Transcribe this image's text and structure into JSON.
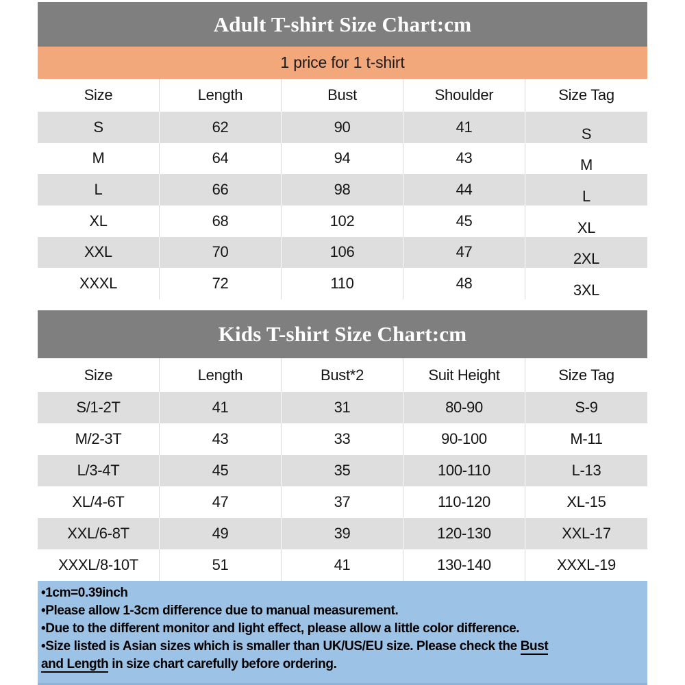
{
  "colors": {
    "title_bar_bg": "#7F7F7F",
    "price_bar_bg": "#F3A87B",
    "row_stripe_bg": "#DEDEDE",
    "notes_bg": "#9CC3E6",
    "title_text": "#FFFFFF"
  },
  "adult": {
    "title": "Adult T-shirt Size Chart:cm",
    "price_note": "1 price for 1 t-shirt",
    "headers": [
      "Size",
      "Length",
      "Bust",
      "Shoulder",
      "Size Tag"
    ],
    "rows": [
      [
        "S",
        "62",
        "90",
        "41",
        "S"
      ],
      [
        "M",
        "64",
        "94",
        "43",
        "M"
      ],
      [
        "L",
        "66",
        "98",
        "44",
        "L"
      ],
      [
        "XL",
        "68",
        "102",
        "45",
        "XL"
      ],
      [
        "XXL",
        "70",
        "106",
        "47",
        "2XL"
      ],
      [
        "XXXL",
        "72",
        "110",
        "48",
        "3XL"
      ]
    ]
  },
  "kids": {
    "title": "Kids T-shirt Size Chart:cm",
    "headers": [
      "Size",
      "Length",
      "Bust*2",
      "Suit Height",
      "Size Tag"
    ],
    "rows": [
      [
        "S/1-2T",
        "41",
        "31",
        "80-90",
        "S-9"
      ],
      [
        "M/2-3T",
        "43",
        "33",
        "90-100",
        "M-11"
      ],
      [
        "L/3-4T",
        "45",
        "35",
        "100-110",
        "L-13"
      ],
      [
        "XL/4-6T",
        "47",
        "37",
        "110-120",
        "XL-15"
      ],
      [
        "XXL/6-8T",
        "49",
        "39",
        "120-130",
        "XXL-17"
      ],
      [
        "XXXL/8-10T",
        "51",
        "41",
        "130-140",
        "XXXL-19"
      ]
    ]
  },
  "notes": {
    "bullet": "•",
    "line1": "1cm=0.39inch",
    "line2": "Please allow 1-3cm difference due to manual measurement.",
    "line3": "Due to the different monitor and light effect, please allow a little color difference.",
    "line4_before": "Size listed is Asian sizes which is smaller than UK/US/EU size. Please check the ",
    "line4_underlined_a": "Bust",
    "line4_underlined_b": "and Length",
    "line4_after": " in size chart carefully before ordering."
  }
}
